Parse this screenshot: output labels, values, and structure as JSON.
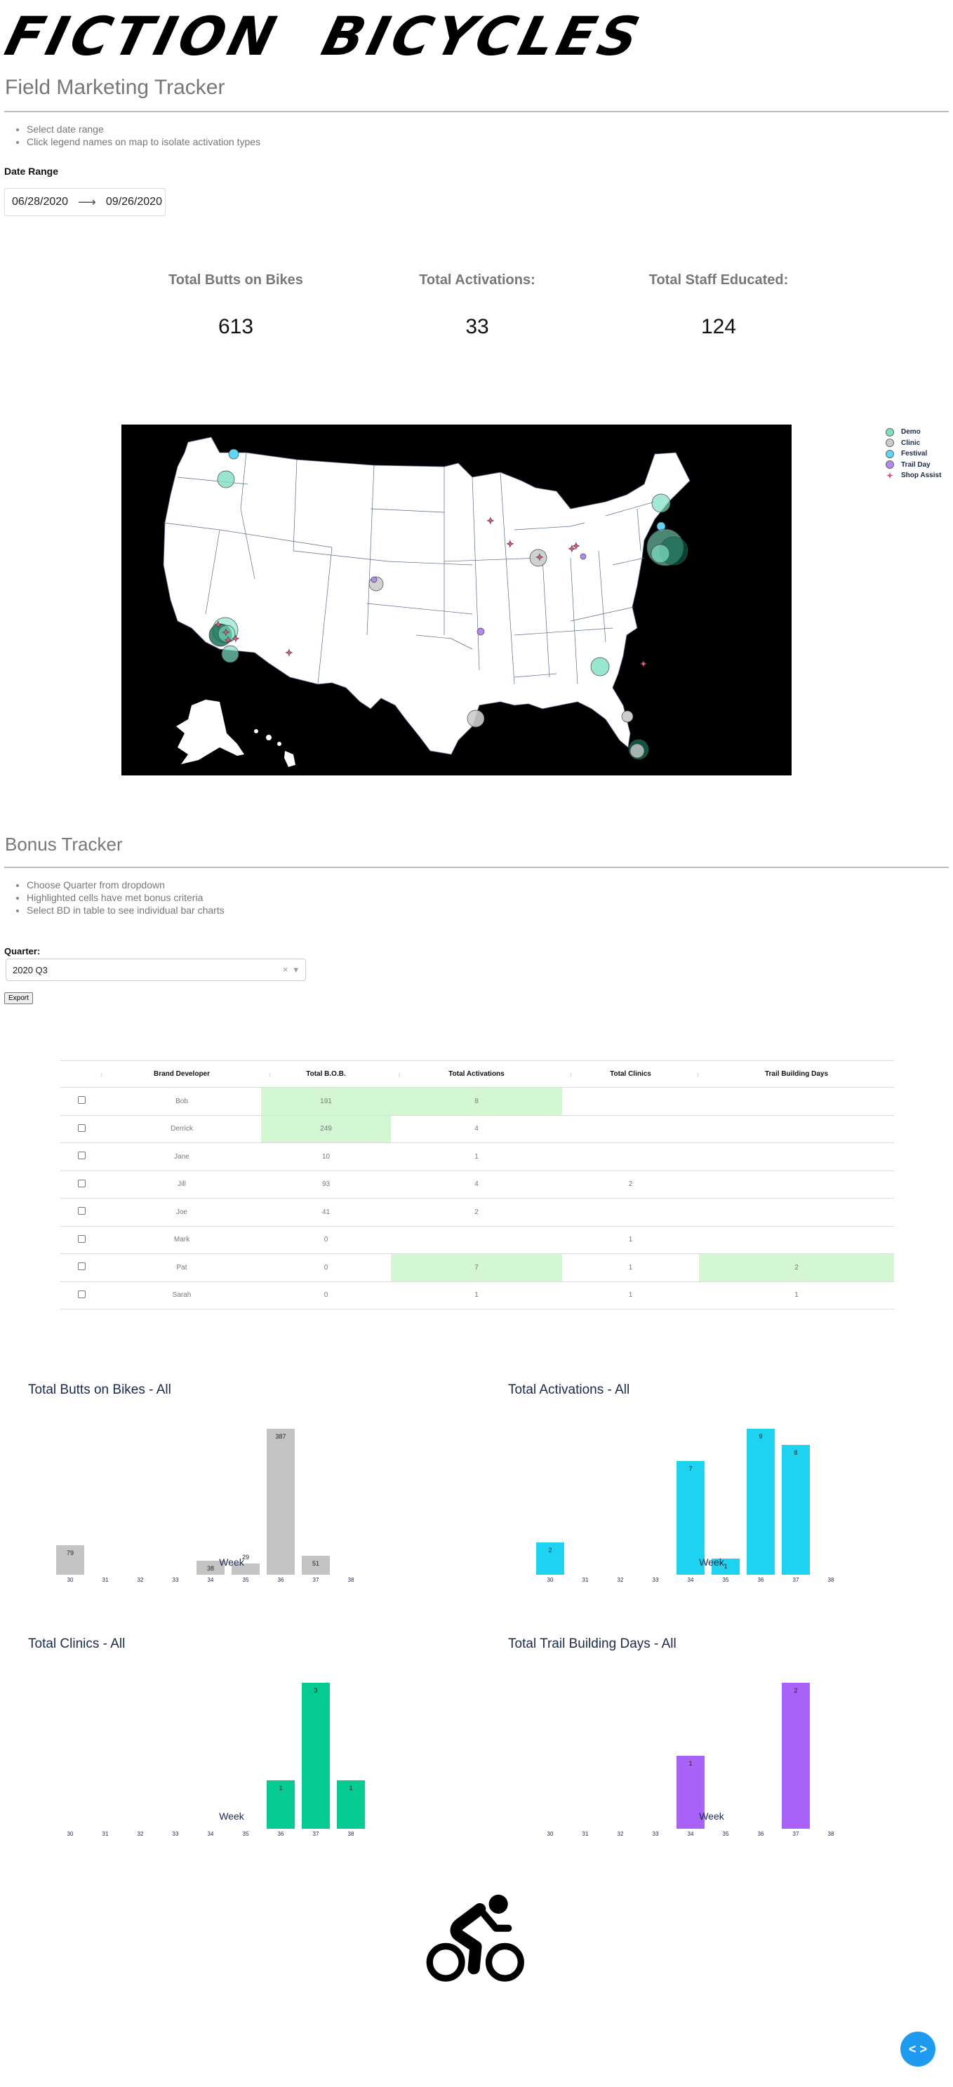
{
  "header": {
    "logo_text": "FICTION  BICYCLES",
    "page_title": "Field Marketing Tracker",
    "instructions": [
      "Select date range",
      "Click legend names on map to isolate activation types"
    ]
  },
  "date_range": {
    "label": "Date Range",
    "start": "06/28/2020",
    "arrow": "⟶",
    "end": "09/26/2020"
  },
  "kpis": [
    {
      "label": "Total Butts on Bikes",
      "value": "613"
    },
    {
      "label": "Total Activations:",
      "value": "33"
    },
    {
      "label": "Total Staff Educated:",
      "value": "124"
    }
  ],
  "map": {
    "legend": [
      {
        "label": "Demo",
        "color": "#7ee0c3",
        "shape": "circle"
      },
      {
        "label": "Clinic",
        "color": "#cccccc",
        "shape": "circle"
      },
      {
        "label": "Festival",
        "color": "#5fd6f5",
        "shape": "circle"
      },
      {
        "label": "Trail Day",
        "color": "#b58af0",
        "shape": "circle"
      },
      {
        "label": "Shop Assist",
        "color": "#e8557a",
        "shape": "star"
      }
    ]
  },
  "bonus": {
    "title": "Bonus Tracker",
    "instructions": [
      "Choose Quarter from dropdown",
      "Highlighted cells have met bonus criteria",
      "Select BD in table to see individual bar charts"
    ],
    "quarter_label": "Quarter:",
    "quarter_value": "2020 Q3",
    "clear_icon": "×",
    "dropdown_icon": "▾",
    "export_label": "Export",
    "sort_icon": "↕",
    "columns": [
      "Brand Developer",
      "Total B.O.B.",
      "Total Activations",
      "Total Clinics",
      "Trail Building Days"
    ],
    "highlight_color": "#d3f7d3",
    "rows": [
      {
        "name": "Bob",
        "bob": "191",
        "activations": "8",
        "clinics": "",
        "trail": "",
        "hl": [
          1,
          2
        ]
      },
      {
        "name": "Derrick",
        "bob": "249",
        "activations": "4",
        "clinics": "",
        "trail": "",
        "hl": [
          1
        ]
      },
      {
        "name": "Jane",
        "bob": "10",
        "activations": "1",
        "clinics": "",
        "trail": "",
        "hl": []
      },
      {
        "name": "Jill",
        "bob": "93",
        "activations": "4",
        "clinics": "2",
        "trail": "",
        "hl": []
      },
      {
        "name": "Joe",
        "bob": "41",
        "activations": "2",
        "clinics": "",
        "trail": "",
        "hl": []
      },
      {
        "name": "Mark",
        "bob": "0",
        "activations": "",
        "clinics": "1",
        "trail": "",
        "hl": []
      },
      {
        "name": "Pat",
        "bob": "0",
        "activations": "7",
        "clinics": "1",
        "trail": "2",
        "hl": [
          2,
          4
        ]
      },
      {
        "name": "Sarah",
        "bob": "0",
        "activations": "1",
        "clinics": "1",
        "trail": "1",
        "hl": []
      }
    ]
  },
  "chart_data": [
    {
      "type": "bar",
      "title": "Total Butts on Bikes - All",
      "xlabel": "Week",
      "ylabel": "",
      "categories": [
        "30",
        "31",
        "32",
        "33",
        "34",
        "35",
        "36",
        "37",
        "38"
      ],
      "values": [
        79,
        0,
        0,
        0,
        38,
        29,
        387,
        51,
        0
      ],
      "color": "#c4c4c4",
      "ylim": [
        0,
        387
      ],
      "grid": false
    },
    {
      "type": "bar",
      "title": "Total Activations - All",
      "xlabel": "Week",
      "ylabel": "",
      "categories": [
        "30",
        "31",
        "32",
        "33",
        "34",
        "35",
        "36",
        "37",
        "38"
      ],
      "values": [
        2,
        0,
        0,
        0,
        7,
        1,
        9,
        8,
        0
      ],
      "color": "#1dd3f0",
      "ylim": [
        0,
        9
      ],
      "grid": false
    },
    {
      "type": "bar",
      "title": "Total Clinics - All",
      "xlabel": "Week",
      "ylabel": "",
      "categories": [
        "30",
        "31",
        "32",
        "33",
        "34",
        "35",
        "36",
        "37",
        "38"
      ],
      "values": [
        0,
        0,
        0,
        0,
        0,
        0,
        1,
        3,
        1
      ],
      "color": "#05cb93",
      "ylim": [
        0,
        3
      ],
      "grid": false
    },
    {
      "type": "bar",
      "title": "Total Trail Building Days - All",
      "xlabel": "Week",
      "ylabel": "",
      "categories": [
        "30",
        "31",
        "32",
        "33",
        "34",
        "35",
        "36",
        "37",
        "38"
      ],
      "values": [
        0,
        0,
        0,
        0,
        1,
        0,
        0,
        2,
        0
      ],
      "color": "#a962f7",
      "ylim": [
        0,
        2
      ],
      "grid": false
    }
  ],
  "footer": {
    "fab_icon": "< >"
  }
}
